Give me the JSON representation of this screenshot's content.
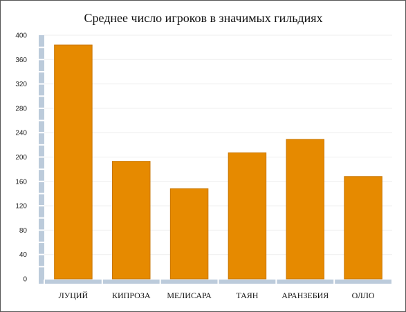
{
  "chart_data": {
    "type": "bar",
    "title": "Среднее число игроков в значимых гильдиях",
    "xlabel": "",
    "ylabel": "",
    "categories": [
      "ЛУЦИЙ",
      "КИПРОЗА",
      "МЕЛИСАРА",
      "ТАЯН",
      "АРАНЗЕБИЯ",
      "ОЛЛО"
    ],
    "values": [
      384,
      193,
      148,
      207,
      229,
      168
    ],
    "ylim": [
      0,
      400
    ],
    "yticks": [
      "0",
      "40",
      "80",
      "120",
      "160",
      "200",
      "240",
      "280",
      "320",
      "360",
      "400"
    ],
    "grid": true,
    "legend": "none",
    "colors": {
      "bar": "#e68a00",
      "bar_edge": "#c97600",
      "axis": "#bccbdb",
      "grid": "#eeeeee"
    }
  }
}
